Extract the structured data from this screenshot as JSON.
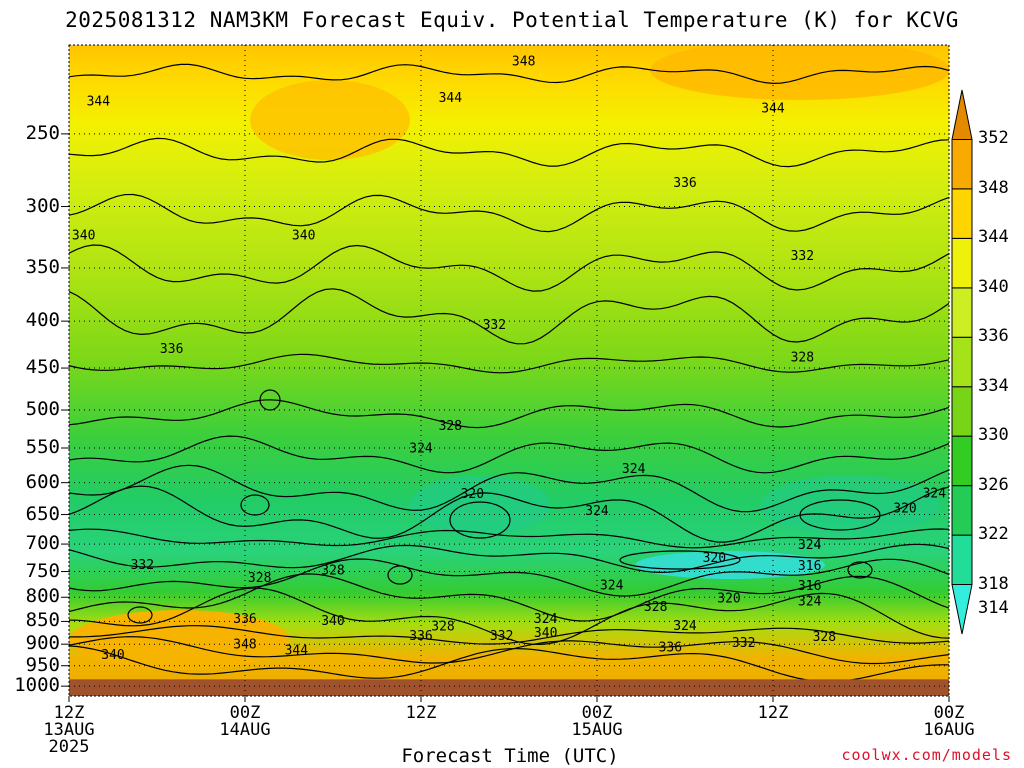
{
  "chart_data": {
    "type": "heatmap",
    "title": "2025081312 NAM3KM Forecast Equiv. Potential Temperature (K) for KCVG",
    "xlabel": "Forecast Time (UTC)",
    "ylabel": "",
    "credit": "coolwx.com/models",
    "y_axis": {
      "scale": "pressure-inverted",
      "range_hPa": [
        200,
        1025
      ],
      "ticks": [
        250,
        300,
        350,
        400,
        450,
        500,
        550,
        600,
        650,
        700,
        750,
        800,
        850,
        900,
        950,
        1000
      ]
    },
    "x_axis": {
      "range_hours": [
        0,
        60
      ],
      "ticks": [
        {
          "hour": 0,
          "lines": [
            "12Z",
            "13AUG",
            "2025"
          ]
        },
        {
          "hour": 12,
          "lines": [
            "00Z",
            "14AUG"
          ]
        },
        {
          "hour": 24,
          "lines": [
            "12Z"
          ]
        },
        {
          "hour": 36,
          "lines": [
            "00Z",
            "15AUG"
          ]
        },
        {
          "hour": 48,
          "lines": [
            "12Z"
          ]
        },
        {
          "hour": 60,
          "lines": [
            "00Z",
            "16AUG"
          ]
        }
      ]
    },
    "grid": "dotted",
    "colorbar": {
      "placement": "right",
      "levels": [
        314,
        318,
        322,
        326,
        330,
        334,
        336,
        340,
        344,
        348,
        352
      ],
      "colors": [
        "#33eedd",
        "#22dd99",
        "#22cc55",
        "#33cc22",
        "#77d416",
        "#a6e21a",
        "#ccee22",
        "#eef10a",
        "#ffd500",
        "#f8aa00",
        "#e48a00"
      ]
    },
    "underground_color": "#a0522d",
    "surface_pressure_hPa": 983,
    "contour_labels": [
      {
        "hour": 31,
        "p": 208,
        "text": "348"
      },
      {
        "hour": 2,
        "p": 230,
        "text": "344"
      },
      {
        "hour": 26,
        "p": 228,
        "text": "344"
      },
      {
        "hour": 48,
        "p": 234,
        "text": "344"
      },
      {
        "hour": 42,
        "p": 282,
        "text": "336"
      },
      {
        "hour": 1,
        "p": 322,
        "text": "340"
      },
      {
        "hour": 16,
        "p": 322,
        "text": "340"
      },
      {
        "hour": 50,
        "p": 339,
        "text": "332"
      },
      {
        "hour": 7,
        "p": 428,
        "text": "336"
      },
      {
        "hour": 29,
        "p": 403,
        "text": "332"
      },
      {
        "hour": 50,
        "p": 437,
        "text": "328"
      },
      {
        "hour": 26,
        "p": 519,
        "text": "328"
      },
      {
        "hour": 24,
        "p": 549,
        "text": "324"
      },
      {
        "hour": 38.5,
        "p": 578,
        "text": "324"
      },
      {
        "hour": 27.5,
        "p": 616,
        "text": "320"
      },
      {
        "hour": 36,
        "p": 643,
        "text": "324"
      },
      {
        "hour": 57,
        "p": 639,
        "text": "320"
      },
      {
        "hour": 59,
        "p": 615,
        "text": "324"
      },
      {
        "hour": 50.5,
        "p": 700,
        "text": "324"
      },
      {
        "hour": 44,
        "p": 723,
        "text": "320"
      },
      {
        "hour": 50.5,
        "p": 738,
        "text": "316"
      },
      {
        "hour": 5,
        "p": 736,
        "text": "332"
      },
      {
        "hour": 13,
        "p": 760,
        "text": "328"
      },
      {
        "hour": 18,
        "p": 746,
        "text": "328"
      },
      {
        "hour": 37,
        "p": 775,
        "text": "324"
      },
      {
        "hour": 50.5,
        "p": 776,
        "text": "316"
      },
      {
        "hour": 45,
        "p": 800,
        "text": "320"
      },
      {
        "hour": 50.5,
        "p": 807,
        "text": "324"
      },
      {
        "hour": 40,
        "p": 818,
        "text": "328"
      },
      {
        "hour": 12,
        "p": 843,
        "text": "336"
      },
      {
        "hour": 18,
        "p": 847,
        "text": "340"
      },
      {
        "hour": 32.5,
        "p": 843,
        "text": "324"
      },
      {
        "hour": 25.5,
        "p": 859,
        "text": "328"
      },
      {
        "hour": 42,
        "p": 858,
        "text": "324"
      },
      {
        "hour": 24,
        "p": 880,
        "text": "336"
      },
      {
        "hour": 29.5,
        "p": 880,
        "text": "332"
      },
      {
        "hour": 32.5,
        "p": 873,
        "text": "340"
      },
      {
        "hour": 51.5,
        "p": 882,
        "text": "328"
      },
      {
        "hour": 46,
        "p": 895,
        "text": "332"
      },
      {
        "hour": 12,
        "p": 898,
        "text": "348"
      },
      {
        "hour": 41,
        "p": 905,
        "text": "336"
      },
      {
        "hour": 15.5,
        "p": 912,
        "text": "344"
      },
      {
        "hour": 3,
        "p": 923,
        "text": "340"
      }
    ]
  }
}
